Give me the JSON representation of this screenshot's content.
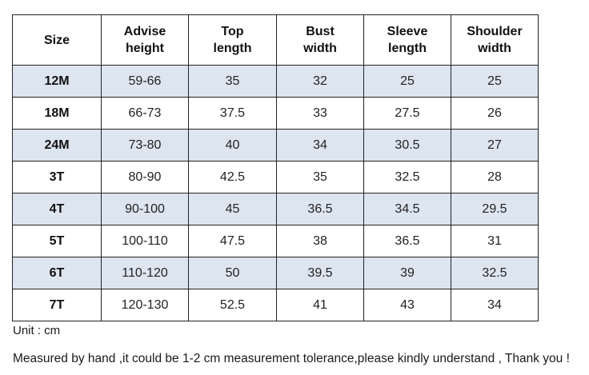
{
  "table": {
    "headers": [
      [
        "Size"
      ],
      [
        "Advise",
        "height"
      ],
      [
        "Top",
        "length"
      ],
      [
        "Bust",
        "width"
      ],
      [
        "Sleeve",
        "length"
      ],
      [
        "Shoulder",
        "width"
      ]
    ],
    "rows": [
      [
        "12M",
        "59-66",
        "35",
        "32",
        "25",
        "25"
      ],
      [
        "18M",
        "66-73",
        "37.5",
        "33",
        "27.5",
        "26"
      ],
      [
        "24M",
        "73-80",
        "40",
        "34",
        "30.5",
        "27"
      ],
      [
        "3T",
        "80-90",
        "42.5",
        "35",
        "32.5",
        "28"
      ],
      [
        "4T",
        "90-100",
        "45",
        "36.5",
        "34.5",
        "29.5"
      ],
      [
        "5T",
        "100-110",
        "47.5",
        "38",
        "36.5",
        "31"
      ],
      [
        "6T",
        "110-120",
        "50",
        "39.5",
        "39",
        "32.5"
      ],
      [
        "7T",
        "120-130",
        "52.5",
        "41",
        "43",
        "34"
      ]
    ]
  },
  "notes": {
    "unit": "Unit : cm",
    "tolerance": "Measured by hand ,it could be 1-2 cm measurement tolerance,please kindly understand , Thank you !"
  },
  "colors": {
    "shaded_row": "#dde5f0",
    "border": "#222222"
  }
}
